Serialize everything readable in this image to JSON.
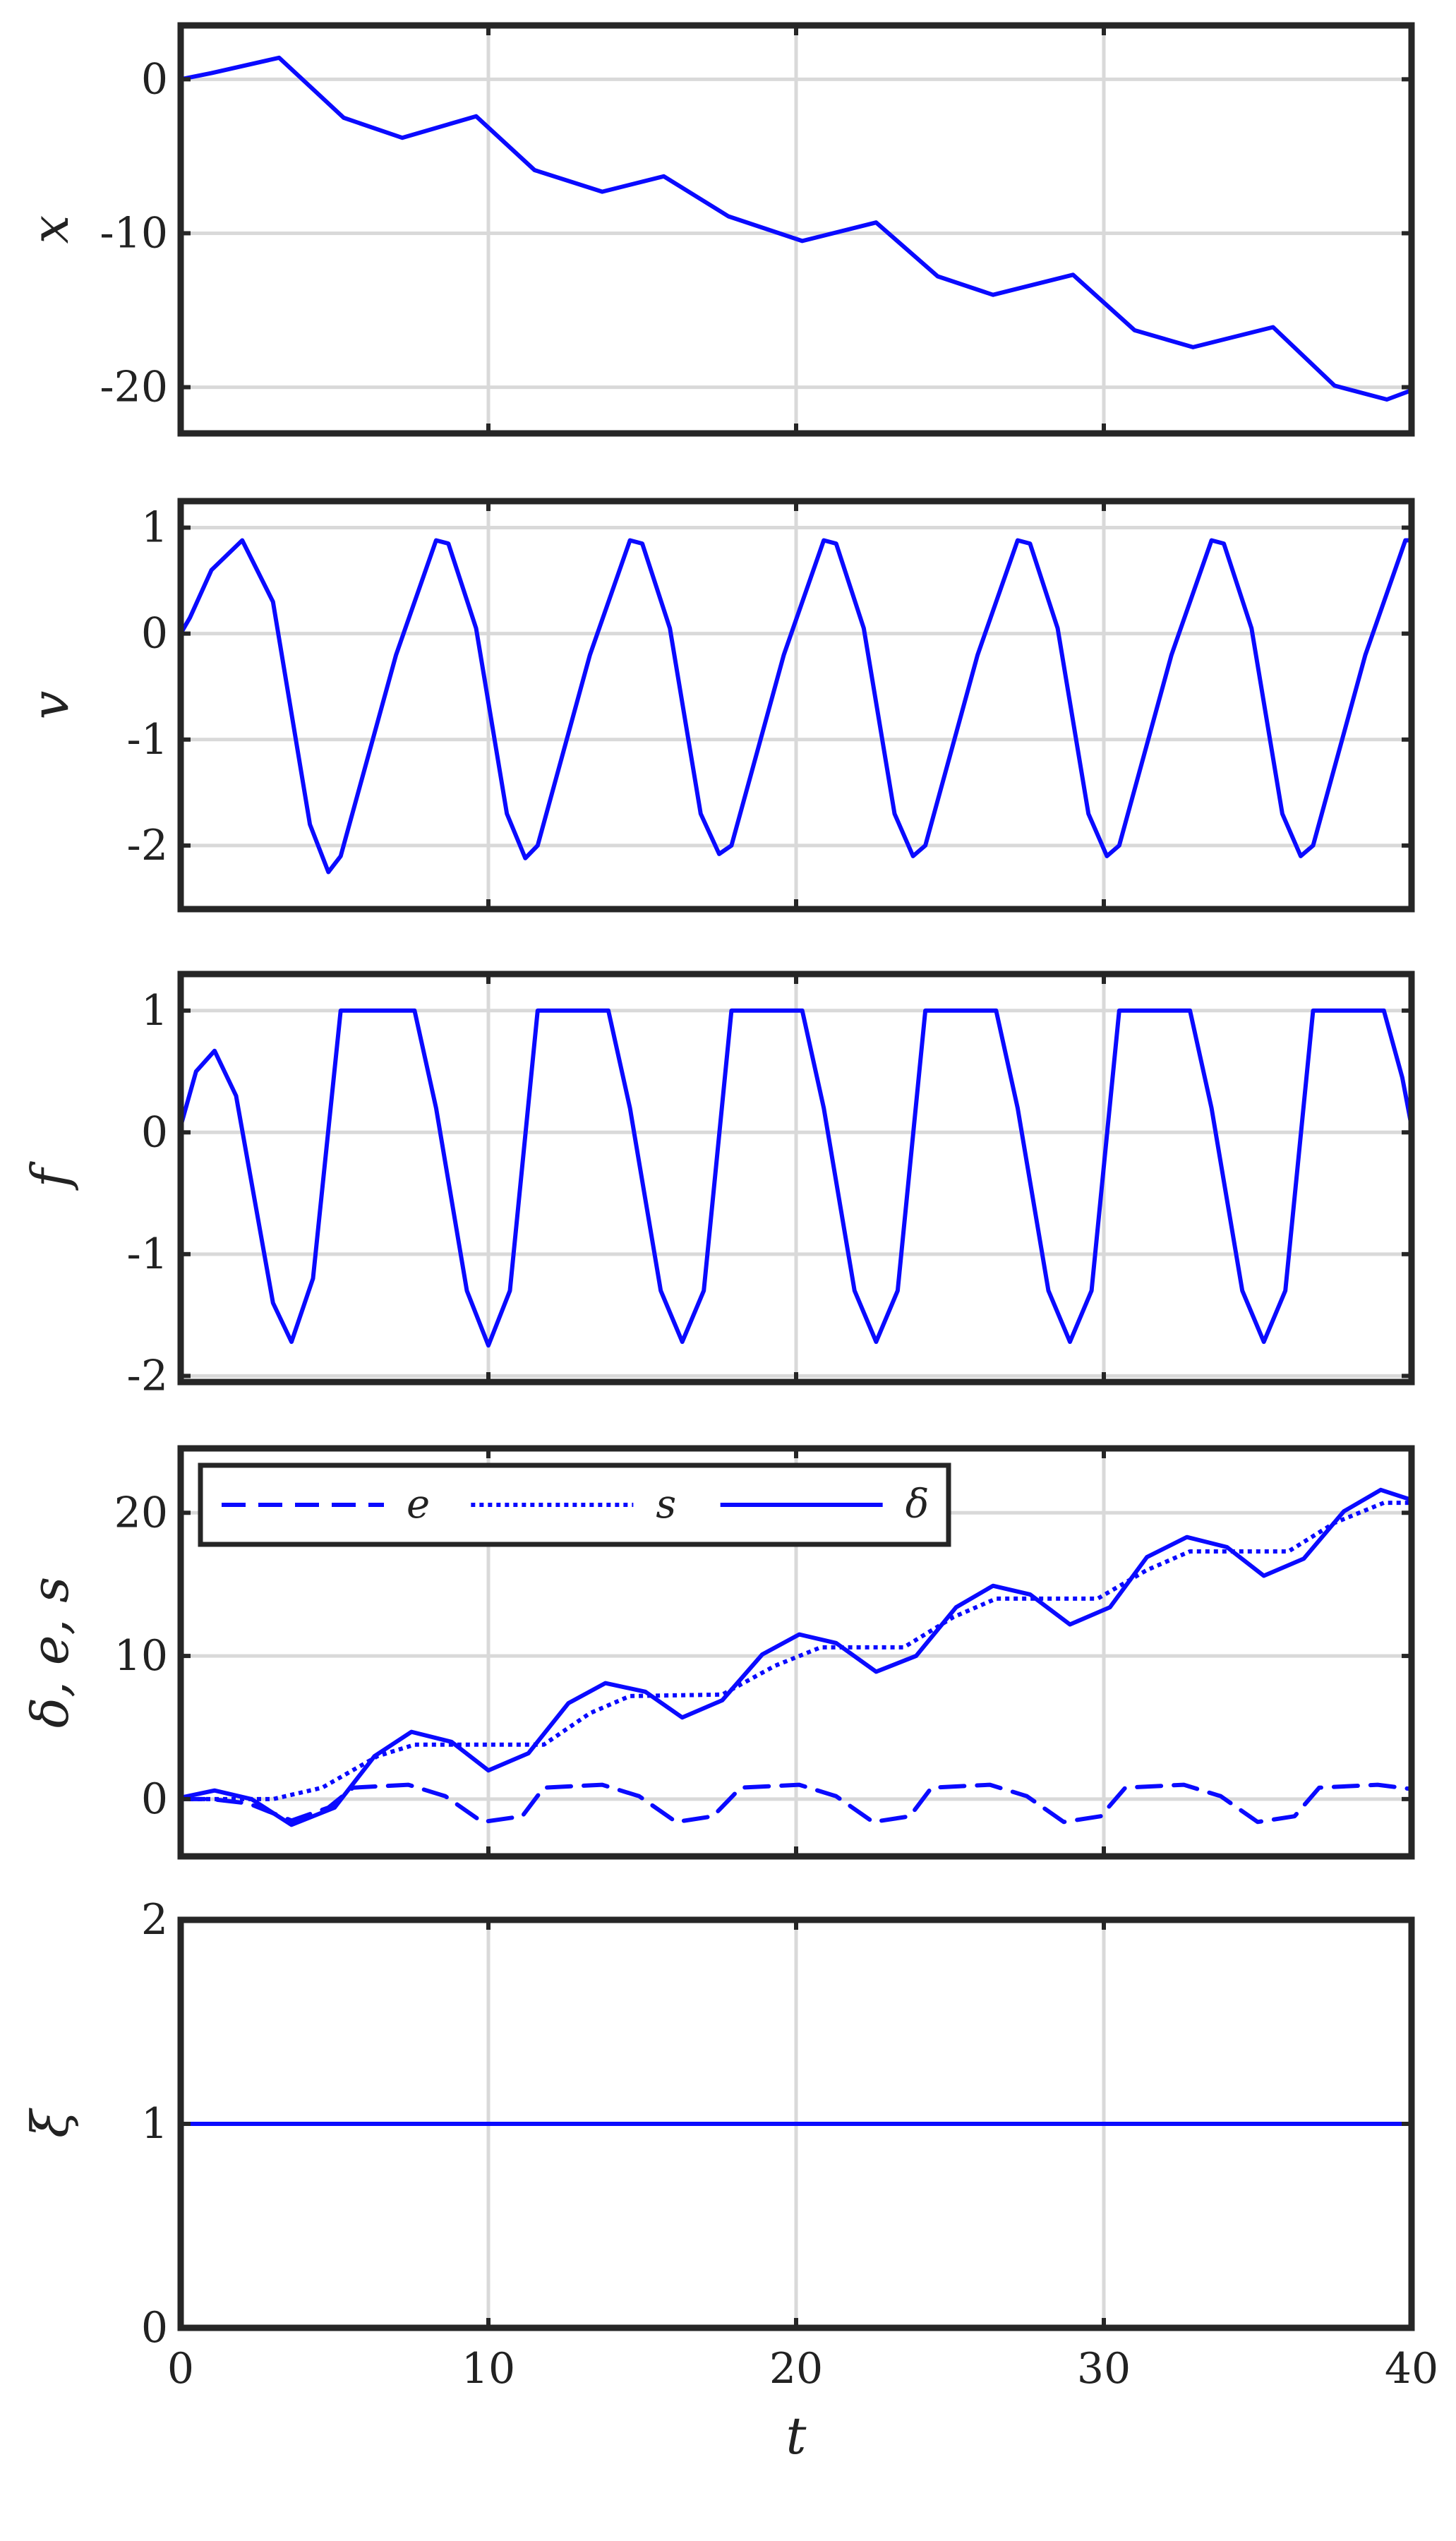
{
  "chart_data": [
    {
      "type": "line",
      "ylabel": "x",
      "xlabel": "",
      "xlim": [
        0,
        40
      ],
      "ylim": [
        -23,
        3.5
      ],
      "xticks": [
        0,
        10,
        20,
        30,
        40
      ],
      "yticks": [
        0,
        -10,
        -20
      ],
      "ytick_labels": [
        "0",
        "-10",
        "-20"
      ],
      "grid": true,
      "color": "#0a0aff",
      "series": [
        {
          "style": "solid",
          "x": [
            0,
            1,
            3.2,
            5.3,
            7.2,
            9.6,
            11.5,
            13.7,
            15.7,
            17.8,
            20.2,
            22.6,
            24.6,
            26.4,
            29.0,
            31.0,
            32.9,
            35.5,
            37.5,
            39.2,
            40
          ],
          "y": [
            0,
            0.4,
            1.4,
            -2.5,
            -3.8,
            -2.4,
            -5.9,
            -7.3,
            -6.3,
            -8.9,
            -10.5,
            -9.3,
            -12.8,
            -14.0,
            -12.7,
            -16.3,
            -17.4,
            -16.1,
            -19.9,
            -20.8,
            -20.2
          ]
        }
      ]
    },
    {
      "type": "line",
      "ylabel": "v",
      "xlabel": "",
      "xlim": [
        0,
        40
      ],
      "ylim": [
        -2.6,
        1.25
      ],
      "xticks": [
        0,
        10,
        20,
        30,
        40
      ],
      "yticks": [
        1,
        0,
        -1,
        -2
      ],
      "ytick_labels": [
        "1",
        "0",
        "-1",
        "-2"
      ],
      "grid": true,
      "color": "#0a0aff",
      "series": [
        {
          "style": "solid",
          "x": [
            0,
            0.3,
            1,
            2,
            3.0,
            4.2,
            4.8,
            5.2,
            7.0,
            8.3,
            8.7,
            9.6,
            10.6,
            11.2,
            11.6,
            13.3,
            14.6,
            15.0,
            15.9,
            16.9,
            17.5,
            17.9,
            19.6,
            20.9,
            21.3,
            22.2,
            23.2,
            23.8,
            24.2,
            25.9,
            27.2,
            27.6,
            28.5,
            29.5,
            30.1,
            30.5,
            32.2,
            33.5,
            33.9,
            34.8,
            35.8,
            36.4,
            36.8,
            38.5,
            39.8,
            40
          ],
          "y": [
            0,
            0.15,
            0.6,
            0.88,
            0.3,
            -1.8,
            -2.25,
            -2.1,
            -0.2,
            0.88,
            0.85,
            0.05,
            -1.7,
            -2.12,
            -2.0,
            -0.2,
            0.88,
            0.85,
            0.05,
            -1.7,
            -2.08,
            -2.0,
            -0.2,
            0.88,
            0.85,
            0.05,
            -1.7,
            -2.1,
            -2.0,
            -0.2,
            0.88,
            0.85,
            0.05,
            -1.7,
            -2.1,
            -2.0,
            -0.2,
            0.88,
            0.85,
            0.05,
            -1.7,
            -2.1,
            -2.0,
            -0.2,
            0.88,
            0.88
          ]
        }
      ]
    },
    {
      "type": "line",
      "ylabel": "f",
      "xlabel": "",
      "xlim": [
        0,
        40
      ],
      "ylim": [
        -2.05,
        1.3
      ],
      "xticks": [
        0,
        10,
        20,
        30,
        40
      ],
      "yticks": [
        1,
        0,
        -1,
        -2
      ],
      "ytick_labels": [
        "1",
        "0",
        "-1",
        "-2"
      ],
      "grid": true,
      "color": "#0a0aff",
      "series": [
        {
          "style": "solid",
          "x": [
            0,
            0.5,
            1.1,
            1.8,
            3.0,
            3.6,
            4.3,
            5.2,
            7.6,
            8.3,
            9.3,
            10.0,
            10.7,
            11.6,
            13.9,
            14.6,
            15.6,
            16.3,
            17.0,
            17.9,
            20.2,
            20.9,
            21.9,
            22.6,
            23.3,
            24.2,
            26.5,
            27.2,
            28.2,
            28.9,
            29.6,
            30.5,
            32.8,
            33.5,
            34.5,
            35.2,
            35.9,
            36.8,
            39.1,
            39.7,
            40
          ],
          "y": [
            0.05,
            0.5,
            0.67,
            0.3,
            -1.4,
            -1.72,
            -1.2,
            1.0,
            1.0,
            0.2,
            -1.3,
            -1.75,
            -1.3,
            1.0,
            1.0,
            0.2,
            -1.3,
            -1.72,
            -1.3,
            1.0,
            1.0,
            0.2,
            -1.3,
            -1.72,
            -1.3,
            1.0,
            1.0,
            0.2,
            -1.3,
            -1.72,
            -1.3,
            1.0,
            1.0,
            0.2,
            -1.3,
            -1.72,
            -1.3,
            1.0,
            1.0,
            0.45,
            0.05
          ]
        }
      ]
    },
    {
      "type": "line",
      "ylabel": "δ, e, s",
      "xlabel": "",
      "xlim": [
        0,
        40
      ],
      "ylim": [
        -4,
        24.5
      ],
      "xticks": [
        0,
        10,
        20,
        30,
        40
      ],
      "yticks": [
        20,
        10,
        0
      ],
      "ytick_labels": [
        "20",
        "10",
        "0"
      ],
      "grid": true,
      "color": "#0a0aff",
      "legend": {
        "position": "top-left",
        "entries": [
          "e",
          "s",
          "δ"
        ]
      },
      "series": [
        {
          "name": "e",
          "style": "dashed",
          "x": [
            0,
            1,
            2.2,
            3.6,
            4.8,
            5.6,
            7.4,
            8.6,
            9.8,
            11.1,
            11.8,
            13.7,
            14.9,
            16.1,
            17.3,
            18.2,
            20.1,
            21.3,
            22.5,
            23.7,
            24.4,
            26.3,
            27.5,
            28.7,
            29.9,
            30.7,
            32.6,
            33.8,
            35.0,
            36.2,
            37.0,
            38.9,
            40
          ],
          "y": [
            0,
            0,
            -0.3,
            -1.5,
            -0.6,
            0.8,
            1.0,
            0.2,
            -1.6,
            -1.2,
            0.8,
            1.0,
            0.2,
            -1.6,
            -1.2,
            0.8,
            1.0,
            0.2,
            -1.6,
            -1.2,
            0.8,
            1.0,
            0.2,
            -1.6,
            -1.2,
            0.8,
            1.0,
            0.2,
            -1.6,
            -1.2,
            0.8,
            1.0,
            0.7
          ]
        },
        {
          "name": "s",
          "style": "dotted",
          "x": [
            0,
            3.0,
            4.6,
            6.4,
            7.6,
            11.8,
            13.3,
            14.6,
            17.6,
            19.3,
            20.8,
            23.5,
            25.1,
            26.5,
            29.8,
            31.4,
            32.8,
            36.0,
            37.5,
            39.1,
            40
          ],
          "y": [
            0,
            0,
            0.8,
            3.0,
            3.8,
            3.8,
            6.0,
            7.2,
            7.3,
            9.3,
            10.6,
            10.6,
            12.7,
            14.0,
            14.0,
            16.0,
            17.3,
            17.3,
            19.3,
            20.7,
            20.7
          ]
        },
        {
          "name": "δ",
          "style": "solid",
          "x": [
            0,
            1.1,
            2.3,
            3.6,
            5.0,
            6.3,
            7.5,
            8.8,
            10.0,
            11.3,
            12.6,
            13.8,
            15.1,
            16.3,
            17.6,
            18.9,
            20.1,
            21.3,
            22.6,
            23.9,
            25.2,
            26.4,
            27.6,
            28.9,
            30.2,
            31.4,
            32.7,
            34.0,
            35.2,
            36.5,
            37.8,
            39.0,
            40
          ],
          "y": [
            0.1,
            0.6,
            0.0,
            -1.8,
            -0.6,
            3.0,
            4.7,
            4.0,
            2.0,
            3.2,
            6.7,
            8.1,
            7.5,
            5.7,
            6.9,
            10.1,
            11.5,
            10.9,
            8.9,
            10.0,
            13.4,
            14.9,
            14.3,
            12.2,
            13.4,
            16.9,
            18.3,
            17.6,
            15.6,
            16.8,
            20.1,
            21.6,
            20.9
          ]
        }
      ]
    },
    {
      "type": "line",
      "ylabel": "ξ",
      "xlabel": "t",
      "xlim": [
        0,
        40
      ],
      "ylim": [
        0,
        2
      ],
      "xticks": [
        0,
        10,
        20,
        30,
        40
      ],
      "xtick_labels": [
        "0",
        "10",
        "20",
        "30",
        "40"
      ],
      "yticks": [
        2,
        1,
        0
      ],
      "ytick_labels": [
        "2",
        "1",
        "0"
      ],
      "grid": true,
      "color": "#0a0aff",
      "series": [
        {
          "style": "solid",
          "x": [
            0,
            40
          ],
          "y": [
            1,
            1
          ]
        }
      ]
    }
  ]
}
